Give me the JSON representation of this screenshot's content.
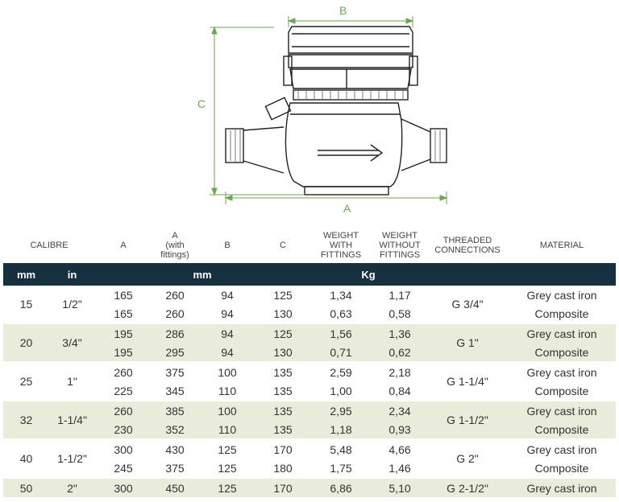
{
  "dims": {
    "a": "A",
    "b": "B",
    "c": "C"
  },
  "headers": {
    "calibre": "CALIBRE",
    "a": "A",
    "a_fit": [
      "A",
      "(with",
      "fittings)"
    ],
    "b": "B",
    "c": "C",
    "w_fit": [
      "WEIGHT",
      "WITH",
      "FITTINGS"
    ],
    "w_nofit": [
      "WEIGHT",
      "WITHOUT",
      "FITTINGS"
    ],
    "threaded": [
      "THREADED",
      "CONNECTIONS"
    ],
    "material": "MATERIAL"
  },
  "units": {
    "mm1": "mm",
    "in": "in",
    "mm2": "mm",
    "kg": "Kg"
  },
  "groups": [
    {
      "mm": "15",
      "in": "1/2\"",
      "thread": "G 3/4\"",
      "rows": [
        {
          "a": "165",
          "afit": "260",
          "b": "94",
          "c": "125",
          "wf": "1,34",
          "wnf": "1,17",
          "mat": "Grey cast iron"
        },
        {
          "a": "165",
          "afit": "260",
          "b": "94",
          "c": "130",
          "wf": "0,63",
          "wnf": "0,58",
          "mat": "Composite"
        }
      ]
    },
    {
      "mm": "20",
      "in": "3/4\"",
      "thread": "G 1\"",
      "rows": [
        {
          "a": "195",
          "afit": "286",
          "b": "94",
          "c": "125",
          "wf": "1,56",
          "wnf": "1,36",
          "mat": "Grey cast iron"
        },
        {
          "a": "195",
          "afit": "295",
          "b": "94",
          "c": "130",
          "wf": "0,71",
          "wnf": "0,62",
          "mat": "Composite"
        }
      ]
    },
    {
      "mm": "25",
      "in": "1\"",
      "thread": "G 1-1/4\"",
      "rows": [
        {
          "a": "260",
          "afit": "375",
          "b": "100",
          "c": "135",
          "wf": "2,59",
          "wnf": "2,18",
          "mat": "Grey cast iron"
        },
        {
          "a": "225",
          "afit": "345",
          "b": "110",
          "c": "135",
          "wf": "1,00",
          "wnf": "0,84",
          "mat": "Composite"
        }
      ]
    },
    {
      "mm": "32",
      "in": "1-1/4\"",
      "thread": "G 1-1/2\"",
      "rows": [
        {
          "a": "260",
          "afit": "385",
          "b": "100",
          "c": "135",
          "wf": "2,95",
          "wnf": "2,34",
          "mat": "Grey cast iron"
        },
        {
          "a": "230",
          "afit": "352",
          "b": "110",
          "c": "135",
          "wf": "1,18",
          "wnf": "0,93",
          "mat": "Composite"
        }
      ]
    },
    {
      "mm": "40",
      "in": "1-1/2\"",
      "thread": "G 2\"",
      "rows": [
        {
          "a": "300",
          "afit": "430",
          "b": "125",
          "c": "170",
          "wf": "5,48",
          "wnf": "4,66",
          "mat": "Grey cast iron"
        },
        {
          "a": "245",
          "afit": "375",
          "b": "125",
          "c": "180",
          "wf": "1,75",
          "wnf": "1,46",
          "mat": "Composite"
        }
      ]
    },
    {
      "mm": "50",
      "in": "2\"",
      "thread": "G 2-1/2\"",
      "rows": [
        {
          "a": "300",
          "afit": "450",
          "b": "125",
          "c": "170",
          "wf": "6,86",
          "wnf": "5,10",
          "mat": "Grey cast iron"
        }
      ]
    }
  ]
}
